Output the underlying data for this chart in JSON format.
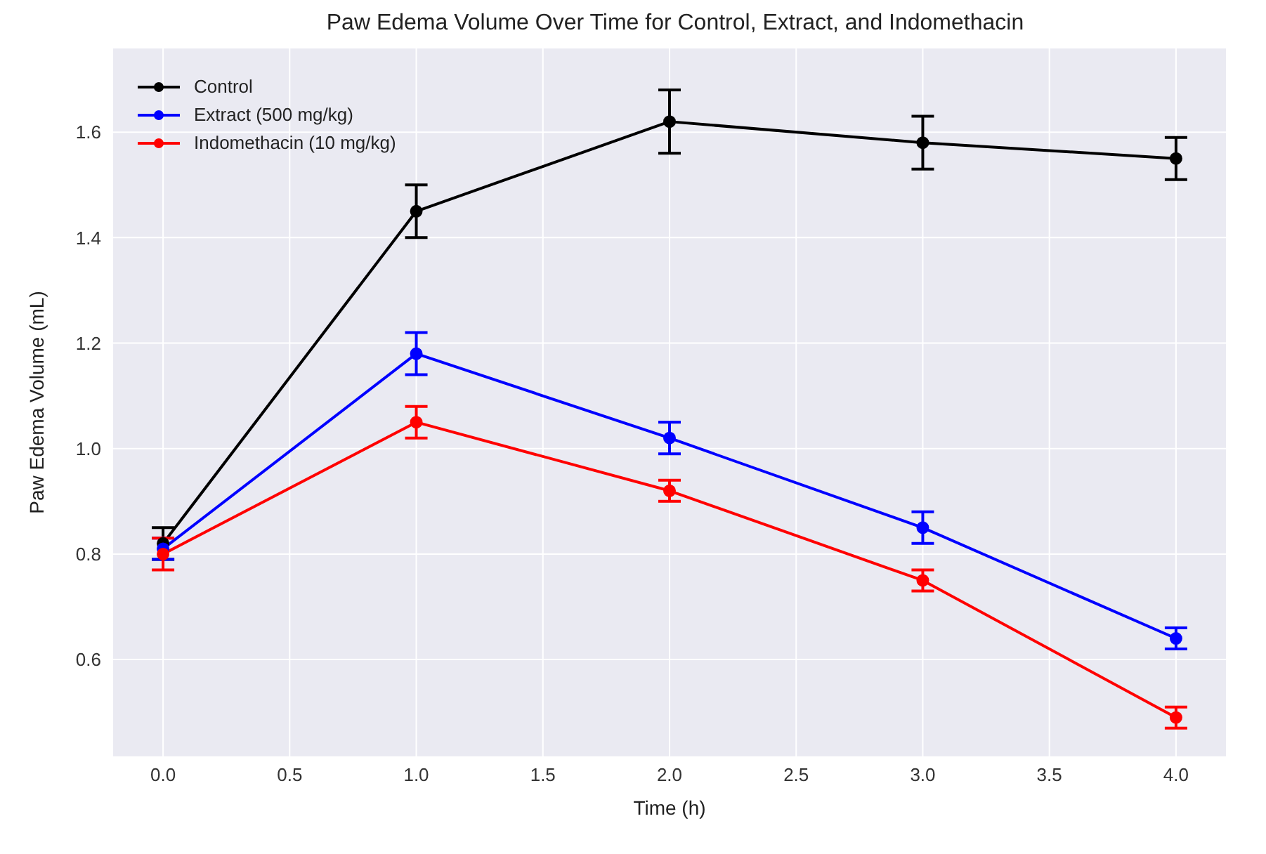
{
  "chart_data": {
    "type": "line",
    "title": "Paw Edema Volume Over Time for Control, Extract, and Indomethacin",
    "xlabel": "Time (h)",
    "ylabel": "Paw Edema Volume (mL)",
    "x": [
      0,
      1,
      2,
      3,
      4
    ],
    "series": [
      {
        "name": "Control",
        "color": "#000000",
        "values": [
          0.82,
          1.45,
          1.62,
          1.58,
          1.55
        ],
        "errors": [
          0.03,
          0.05,
          0.06,
          0.05,
          0.04
        ]
      },
      {
        "name": "Extract (500 mg/kg)",
        "color": "#0000ff",
        "values": [
          0.81,
          1.18,
          1.02,
          0.85,
          0.64
        ],
        "errors": [
          0.02,
          0.04,
          0.03,
          0.03,
          0.02
        ]
      },
      {
        "name": "Indomethacin (10 mg/kg)",
        "color": "#ff0000",
        "values": [
          0.8,
          1.05,
          0.92,
          0.75,
          0.49
        ],
        "errors": [
          0.03,
          0.03,
          0.02,
          0.02,
          0.02
        ]
      }
    ],
    "xlim": [
      -0.2,
      4.2
    ],
    "xticks": [
      {
        "value": 0,
        "label": "0.0"
      },
      {
        "value": 0.5,
        "label": "0.5"
      },
      {
        "value": 1,
        "label": "1.0"
      },
      {
        "value": 1.5,
        "label": "1.5"
      },
      {
        "value": 2,
        "label": "2.0"
      },
      {
        "value": 2.5,
        "label": "2.5"
      },
      {
        "value": 3,
        "label": "3.0"
      },
      {
        "value": 3.5,
        "label": "3.5"
      },
      {
        "value": 4,
        "label": "4.0"
      }
    ],
    "ylim": [
      0.415,
      1.76
    ],
    "yticks": [
      {
        "value": 0.6,
        "label": "0.6"
      },
      {
        "value": 0.8,
        "label": "0.8"
      },
      {
        "value": 1.0,
        "label": "1.0"
      },
      {
        "value": 1.2,
        "label": "1.2"
      },
      {
        "value": 1.4,
        "label": "1.4"
      },
      {
        "value": 1.6,
        "label": "1.6"
      }
    ],
    "grid": true,
    "legend": "top left",
    "marker": "circle",
    "line_style": "solid"
  }
}
